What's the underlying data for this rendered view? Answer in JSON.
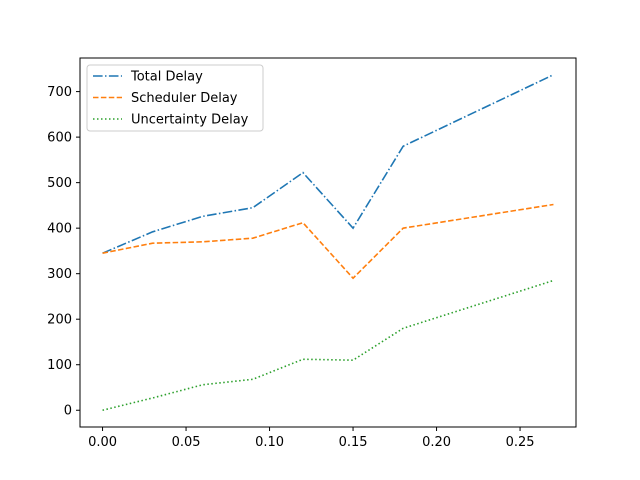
{
  "chart_data": {
    "type": "line",
    "title": "",
    "xlabel": "",
    "ylabel": "",
    "xlim": [
      -0.0135,
      0.2835
    ],
    "ylim": [
      -36.8,
      773.8
    ],
    "grid": false,
    "legend_position": "top-left",
    "x_ticks": [
      0.0,
      0.05,
      0.1,
      0.15,
      0.2,
      0.25
    ],
    "x_tick_labels": [
      "0.00",
      "0.05",
      "0.10",
      "0.15",
      "0.20",
      "0.25"
    ],
    "y_ticks": [
      0,
      100,
      200,
      300,
      400,
      500,
      600,
      700
    ],
    "y_tick_labels": [
      "0",
      "100",
      "200",
      "300",
      "400",
      "500",
      "600",
      "700"
    ],
    "x": [
      0.0,
      0.03,
      0.06,
      0.09,
      0.12,
      0.15,
      0.18,
      0.27
    ],
    "series": [
      {
        "name": "Total Delay",
        "color": "#1f77b4",
        "style": "dashdot",
        "values": [
          345,
          392,
          426,
          445,
          522,
          400,
          580,
          737
        ]
      },
      {
        "name": "Scheduler Delay",
        "color": "#ff7f0e",
        "style": "dashed",
        "values": [
          345,
          367,
          370,
          378,
          412,
          290,
          400,
          452
        ]
      },
      {
        "name": "Uncertainty Delay",
        "color": "#2ca02c",
        "style": "dotted",
        "values": [
          0,
          27,
          56,
          68,
          112,
          110,
          180,
          285
        ]
      }
    ]
  }
}
